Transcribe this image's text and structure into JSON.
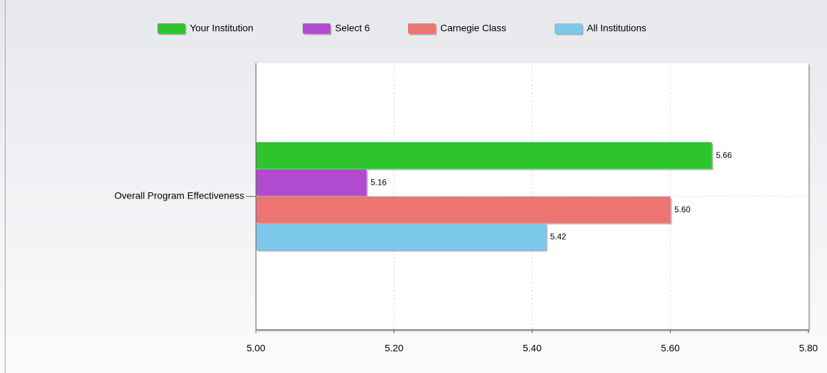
{
  "chart_data": {
    "type": "hbar",
    "categories": [
      "Overall Program Effectiveness"
    ],
    "series": [
      {
        "name": "Your Institution",
        "color": "#2dc42d",
        "values": [
          5.66
        ],
        "value_labels": [
          "5.66"
        ]
      },
      {
        "name": "Select 6",
        "color": "#b04bd0",
        "values": [
          5.16
        ],
        "value_labels": [
          "5.16"
        ]
      },
      {
        "name": "Carnegie Class",
        "color": "#ec7472",
        "values": [
          5.6
        ],
        "value_labels": [
          "5.60"
        ]
      },
      {
        "name": "All Institutions",
        "color": "#7cc8ea",
        "values": [
          5.42
        ],
        "value_labels": [
          "5.42"
        ]
      }
    ],
    "xlim": [
      5,
      5.8
    ],
    "xticks": [
      {
        "value": 5,
        "label": "5.00"
      },
      {
        "value": 5.2,
        "label": "5.20"
      },
      {
        "value": 5.4,
        "label": "5.40"
      },
      {
        "value": 5.6,
        "label": "5.60"
      },
      {
        "value": 5.8,
        "label": "5.80"
      }
    ],
    "grid": true,
    "legend": "top"
  }
}
